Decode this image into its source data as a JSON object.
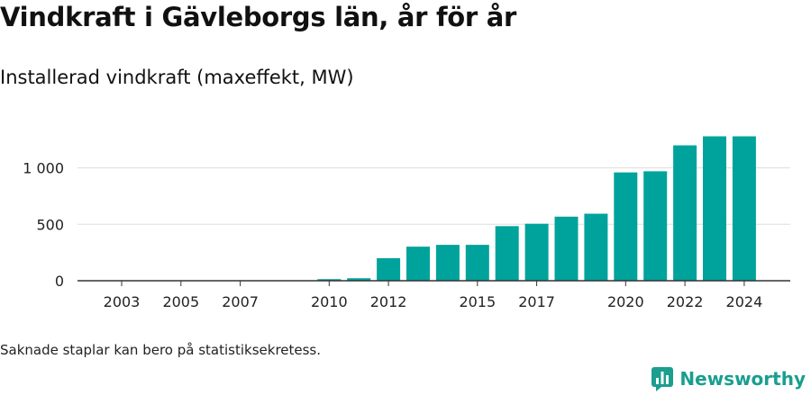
{
  "header": {
    "title": "Vindkraft i Gävleborgs län, år för år",
    "subtitle": "Installerad vindkraft (maxeffekt, MW)"
  },
  "footer": {
    "note": "Saknade staplar kan bero på statistiksekretess.",
    "brand": "Newsworthy"
  },
  "colors": {
    "bar": "#00a39b",
    "brand": "#1a9e8f",
    "grid": "#dddddd",
    "axis": "#333333"
  },
  "icons": {
    "brand_logo": "newsworthy-logo-icon"
  },
  "chart_data": {
    "type": "bar",
    "categories": [
      "2003",
      "2004",
      "2005",
      "2006",
      "2007",
      "2008",
      "2009",
      "2010",
      "2011",
      "2012",
      "2013",
      "2014",
      "2015",
      "2016",
      "2017",
      "2018",
      "2019",
      "2020",
      "2021",
      "2022",
      "2023",
      "2024"
    ],
    "values": [
      0,
      0,
      0,
      0,
      0,
      0,
      0,
      14,
      22,
      200,
      302,
      318,
      318,
      484,
      505,
      568,
      594,
      960,
      970,
      1200,
      1280,
      1280
    ],
    "x_tick_labels": [
      "2003",
      "2005",
      "2007",
      "2010",
      "2012",
      "2015",
      "2017",
      "2020",
      "2022",
      "2024"
    ],
    "y_ticks": [
      0,
      500,
      1000
    ],
    "y_tick_labels": [
      "0",
      "500",
      "1 000"
    ],
    "ylim": [
      0,
      1300
    ],
    "xlabel": "",
    "ylabel": "",
    "grid": true,
    "legend": false
  }
}
